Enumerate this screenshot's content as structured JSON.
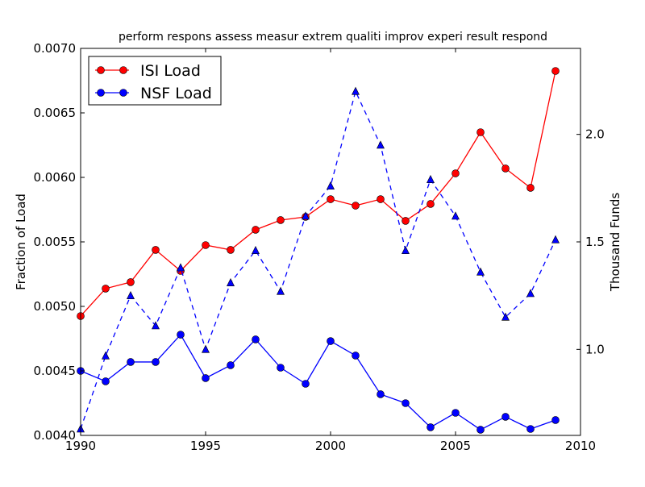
{
  "chart_data": {
    "type": "line",
    "title": "perform respons assess measur extrem qualiti improv experi result respond",
    "xlabel": "",
    "ylabel": "Fraction of Load",
    "y2label": "Thousand Funds",
    "xlim": [
      1990,
      2010
    ],
    "ylim": [
      0.004,
      0.007
    ],
    "y2lim": [
      0.6,
      2.4
    ],
    "x_ticks": [
      "1990",
      "1995",
      "2000",
      "2005",
      "2010"
    ],
    "y_ticks": [
      "0.0040",
      "0.0045",
      "0.0050",
      "0.0055",
      "0.0060",
      "0.0065",
      "0.0070"
    ],
    "y2_ticks": [
      "1.0",
      "1.5",
      "2.0"
    ],
    "legend_position": "top-left",
    "grid": false,
    "x": [
      1990,
      1991,
      1992,
      1993,
      1994,
      1995,
      1996,
      1997,
      1998,
      1999,
      2000,
      2001,
      2002,
      2003,
      2004,
      2005,
      2006,
      2007,
      2008,
      2009
    ],
    "series": [
      {
        "name": "ISI Load",
        "axis": "left",
        "color": "#ff0000",
        "style": "solid",
        "marker": "circle",
        "values": [
          0.004925,
          0.005138,
          0.005188,
          0.005438,
          0.005275,
          0.005475,
          0.005438,
          0.005594,
          0.005669,
          0.005694,
          0.005831,
          0.005781,
          0.005831,
          0.005663,
          0.005794,
          0.006031,
          0.00635,
          0.006069,
          0.005919,
          0.006825
        ]
      },
      {
        "name": "NSF Load",
        "axis": "left",
        "color": "#0000ff",
        "style": "solid",
        "marker": "circle",
        "values": [
          0.0045,
          0.004419,
          0.004569,
          0.004569,
          0.004781,
          0.004444,
          0.004544,
          0.004744,
          0.004525,
          0.0044,
          0.004731,
          0.004619,
          0.004319,
          0.00425,
          0.004063,
          0.004175,
          0.004044,
          0.004144,
          0.00405,
          0.004119
        ]
      },
      {
        "name": "",
        "axis": "right",
        "color": "#0000ff",
        "style": "dashed",
        "marker": "triangle",
        "values": [
          0.63,
          0.97,
          1.25,
          1.11,
          1.38,
          1.0,
          1.31,
          1.46,
          1.27,
          1.62,
          1.76,
          2.2,
          1.95,
          1.46,
          1.79,
          1.62,
          1.36,
          1.15,
          1.26,
          1.51
        ]
      }
    ]
  }
}
